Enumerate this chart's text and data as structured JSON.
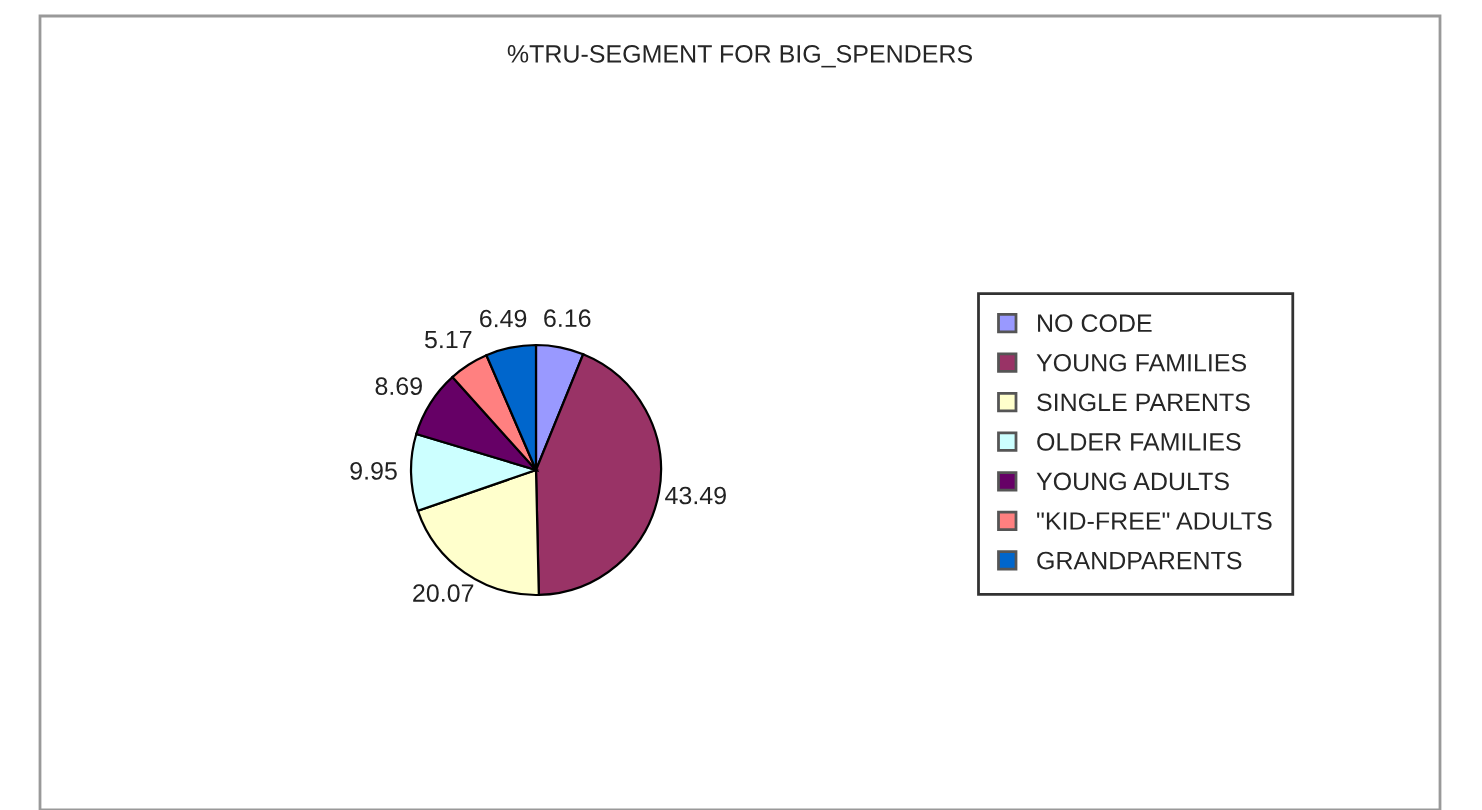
{
  "chart_data": {
    "type": "pie",
    "title": "%TRU-SEGMENT FOR BIG_SPENDERS",
    "categories": [
      "NO CODE",
      "YOUNG FAMILIES",
      "SINGLE PARENTS",
      "OLDER FAMILIES",
      "YOUNG ADULTS",
      "\"KID-FREE\" ADULTS",
      "GRANDPARENTS"
    ],
    "values": [
      6.16,
      43.49,
      20.07,
      9.95,
      8.69,
      5.17,
      6.49
    ],
    "colors": [
      "#9999ff",
      "#993366",
      "#ffffcc",
      "#ccffff",
      "#660066",
      "#ff8080",
      "#0066cc"
    ],
    "data_labels": true,
    "legend": "right"
  }
}
